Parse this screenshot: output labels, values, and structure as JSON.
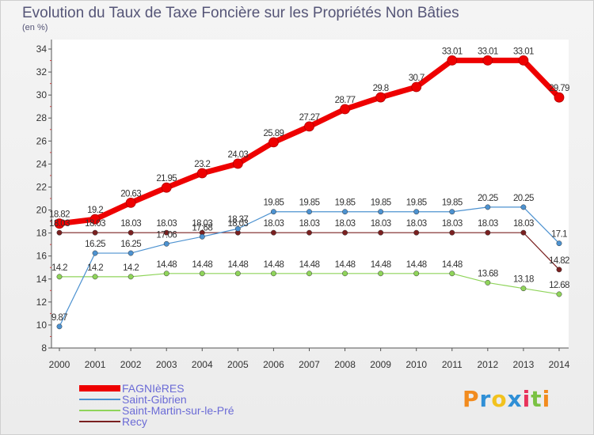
{
  "header": {
    "title": "Evolution du Taux de Taxe Foncière sur les Propriétés Non Bâties",
    "subtitle": "(en %)"
  },
  "logo": {
    "text": "Proxiti",
    "colors": [
      "#f28b1e",
      "#2f8fd6",
      "#f2c21e",
      "#2f8fd6",
      "#e8325a",
      "#7ac143",
      "#f28b1e"
    ]
  },
  "chart_data": {
    "type": "line",
    "categories": [
      "2000",
      "2001",
      "2002",
      "2003",
      "2004",
      "2005",
      "2006",
      "2007",
      "2008",
      "2009",
      "2010",
      "2011",
      "2012",
      "2013",
      "2014"
    ],
    "ylim": [
      8,
      34
    ],
    "yticks": [
      8,
      10,
      12,
      14,
      16,
      18,
      20,
      22,
      24,
      26,
      28,
      30,
      32,
      34
    ],
    "grid": false,
    "legend_position": "bottom-left",
    "series": [
      {
        "name": "FAGNIèRES",
        "color": "#ee0000",
        "values": [
          18.82,
          19.2,
          20.63,
          21.95,
          23.2,
          24.03,
          25.89,
          27.27,
          28.77,
          29.8,
          30.7,
          33.01,
          33.01,
          33.01,
          29.79
        ],
        "labels": [
          "18.82",
          "19.2",
          "20.63",
          "21.95",
          "23.2",
          "24.03",
          "25.89",
          "27.27",
          "28.77",
          "29.8",
          "30.7",
          "33.01",
          "33.01",
          "33.01",
          "29.79"
        ]
      },
      {
        "name": "Saint-Gibrien",
        "color": "#4d92d0",
        "values": [
          9.87,
          16.25,
          16.25,
          17.06,
          17.68,
          18.37,
          19.85,
          19.85,
          19.85,
          19.85,
          19.85,
          19.85,
          20.25,
          20.25,
          17.1
        ],
        "labels": [
          "9.87",
          "16.25",
          "16.25",
          "17.06",
          "17.68",
          "18.37",
          "19.85",
          "19.85",
          "19.85",
          "19.85",
          "19.85",
          "19.85",
          "20.25",
          "20.25",
          "17.1"
        ]
      },
      {
        "name": "Saint-Martin-sur-le-Pré",
        "color": "#8fd45a",
        "values": [
          14.2,
          14.2,
          14.2,
          14.48,
          14.48,
          14.48,
          14.48,
          14.48,
          14.48,
          14.48,
          14.48,
          14.48,
          13.68,
          13.18,
          12.68
        ],
        "labels": [
          "14.2",
          "14.2",
          "14.2",
          "14.48",
          "14.48",
          "14.48",
          "14.48",
          "14.48",
          "14.48",
          "14.48",
          "14.48",
          "14.48",
          "13.68",
          "13.18",
          "12.68"
        ]
      },
      {
        "name": "Recy",
        "color": "#7a2020",
        "values": [
          18.03,
          18.03,
          18.03,
          18.03,
          18.03,
          18.03,
          18.03,
          18.03,
          18.03,
          18.03,
          18.03,
          18.03,
          18.03,
          18.03,
          14.82
        ],
        "labels": [
          "18.03",
          "18.03",
          "18.03",
          "18.03",
          "18.03",
          "18.03",
          "18.03",
          "18.03",
          "18.03",
          "18.03",
          "18.03",
          "18.03",
          "18.03",
          "18.03",
          "14.82"
        ]
      }
    ]
  }
}
